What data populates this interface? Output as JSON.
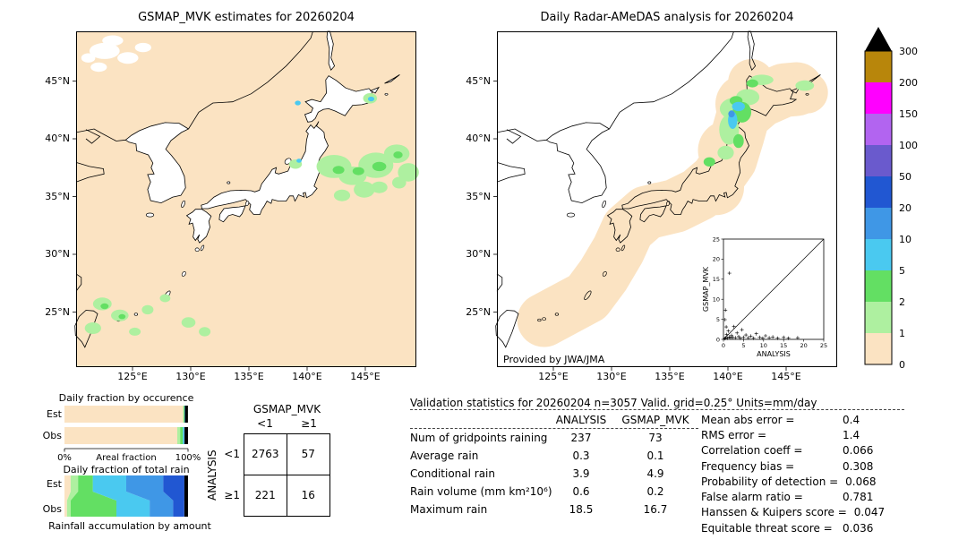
{
  "figure": {
    "left_map": {
      "title": "GSMAP_MVK estimates for 20260204"
    },
    "right_map": {
      "title": "Daily Radar-AMeDAS analysis for 20260204",
      "credit": "Provided by JWA/JMA"
    },
    "lat_ticks": [
      "45°N",
      "40°N",
      "35°N",
      "30°N",
      "25°N"
    ],
    "lon_ticks": [
      "125°E",
      "130°E",
      "135°E",
      "140°E",
      "145°E"
    ]
  },
  "colorbar": {
    "unit_labels": [
      "300",
      "200",
      "150",
      "100",
      "50",
      "20",
      "10",
      "5",
      "2",
      "1",
      "0"
    ],
    "colors_top_to_bottom": [
      "#b8860b",
      "#ff00ff",
      "#b264f0",
      "#6a5acd",
      "#2157d2",
      "#3f97e6",
      "#4ac9f0",
      "#63df63",
      "#aef0a0",
      "#fbe3c2"
    ],
    "overflow_arrow_color": "#000000"
  },
  "fractions": {
    "occurrence": {
      "title": "Daily fraction by occurence",
      "row_labels": [
        "Est",
        "Obs"
      ],
      "axis": {
        "left": "0%",
        "center": "Areal fraction",
        "right": "100%"
      }
    },
    "total_rain": {
      "title": "Daily fraction of total rain",
      "row_labels": [
        "Est",
        "Obs"
      ],
      "footer": "Rainfall accumulation by amount"
    }
  },
  "contingency": {
    "col_group": "GSMAP_MVK",
    "row_group": "ANALYSIS",
    "col_labels": [
      "<1",
      "≥1"
    ],
    "row_labels": [
      "<1",
      "≥1"
    ],
    "values": [
      [
        "2763",
        "57"
      ],
      [
        "221",
        "16"
      ]
    ]
  },
  "stats": {
    "title": "Validation statistics for 20260204  n=3057 Valid. grid=0.25° Units=mm/day",
    "col_headers": [
      "ANALYSIS",
      "GSMAP_MVK"
    ],
    "rows": [
      {
        "label": "Num of gridpoints raining",
        "analysis": "237",
        "gsmap": "73"
      },
      {
        "label": "Average rain",
        "analysis": "0.3",
        "gsmap": "0.1"
      },
      {
        "label": "Conditional rain",
        "analysis": "3.9",
        "gsmap": "4.9"
      },
      {
        "label": "Rain volume (mm km²10⁶)",
        "analysis": "0.6",
        "gsmap": "0.2"
      },
      {
        "label": "Maximum rain",
        "analysis": "18.5",
        "gsmap": "16.7"
      }
    ],
    "side": [
      {
        "label": "Mean abs error =",
        "value": "0.4"
      },
      {
        "label": "RMS error =",
        "value": "1.4"
      },
      {
        "label": "Correlation coeff =",
        "value": "0.066"
      },
      {
        "label": "Frequency bias =",
        "value": "0.308"
      },
      {
        "label": "Probability of detection =",
        "value": "0.068"
      },
      {
        "label": "False alarm ratio =",
        "value": "0.781"
      },
      {
        "label": "Hanssen & Kuipers score =",
        "value": "0.047"
      },
      {
        "label": "Equitable threat score =",
        "value": "0.036"
      }
    ]
  },
  "chart_data": [
    {
      "type": "heatmap",
      "id": "gsmap_map",
      "title": "GSMAP_MVK estimates for 20260204",
      "units": "mm/day",
      "x_ticks": [
        "125°E",
        "130°E",
        "135°E",
        "140°E",
        "145°E"
      ],
      "y_ticks": [
        "45°N",
        "40°N",
        "35°N",
        "30°N",
        "25°N"
      ],
      "scale_levels_mm_per_day": [
        0,
        1,
        2,
        5,
        10,
        20,
        50,
        100,
        150,
        200,
        300
      ],
      "rain_cells_format": "[lon_deg_E, lat_deg_N, rx_deg, ry_deg, level(1=1-2, 2=2-5, 3=5-10, 4=10-20 mm/day)]",
      "rain_cells": [
        [
          142.3,
          37.6,
          1.5,
          1.0,
          1
        ],
        [
          143.9,
          36.8,
          1.2,
          0.8,
          1
        ],
        [
          145.9,
          37.7,
          1.5,
          1.1,
          1
        ],
        [
          147.7,
          38.7,
          1.1,
          0.8,
          1
        ],
        [
          148.7,
          37.1,
          0.9,
          0.8,
          1
        ],
        [
          144.9,
          35.6,
          0.9,
          0.7,
          1
        ],
        [
          143.0,
          35.1,
          0.7,
          0.5,
          1
        ],
        [
          146.2,
          35.8,
          0.7,
          0.5,
          1
        ],
        [
          147.9,
          36.2,
          0.6,
          0.5,
          1
        ],
        [
          144.4,
          37.2,
          0.5,
          0.35,
          2
        ],
        [
          146.2,
          37.6,
          0.6,
          0.4,
          2
        ],
        [
          142.7,
          37.3,
          0.5,
          0.35,
          2
        ],
        [
          147.8,
          38.6,
          0.4,
          0.3,
          2
        ],
        [
          139.0,
          37.8,
          0.55,
          0.4,
          1
        ],
        [
          139.3,
          38.1,
          0.22,
          0.18,
          3
        ],
        [
          145.4,
          43.5,
          0.6,
          0.45,
          1
        ],
        [
          145.5,
          43.45,
          0.28,
          0.2,
          3
        ],
        [
          139.2,
          43.1,
          0.25,
          0.2,
          3
        ],
        [
          122.4,
          25.7,
          0.8,
          0.55,
          1
        ],
        [
          121.6,
          23.6,
          0.7,
          0.5,
          1
        ],
        [
          123.9,
          24.7,
          0.75,
          0.5,
          1
        ],
        [
          126.3,
          25.2,
          0.5,
          0.4,
          1
        ],
        [
          127.8,
          26.2,
          0.45,
          0.35,
          1
        ],
        [
          129.8,
          24.1,
          0.6,
          0.45,
          1
        ],
        [
          131.2,
          23.3,
          0.5,
          0.4,
          1
        ],
        [
          125.2,
          23.3,
          0.5,
          0.35,
          1
        ],
        [
          122.6,
          25.5,
          0.35,
          0.25,
          2
        ],
        [
          124.1,
          24.6,
          0.3,
          0.22,
          2
        ]
      ]
    },
    {
      "type": "heatmap",
      "id": "radar_map",
      "title": "Daily Radar-AMeDAS analysis for 20260204",
      "units": "mm/day",
      "credit": "Provided by JWA/JMA",
      "x_ticks": [
        "125°E",
        "130°E",
        "135°E",
        "140°E",
        "145°E"
      ],
      "y_ticks": [
        "45°N",
        "40°N",
        "35°N",
        "30°N",
        "25°N"
      ],
      "coverage_path": [
        [
          124.2,
          24.3
        ],
        [
          127.9,
          26.3
        ],
        [
          129.3,
          28.2
        ],
        [
          130.6,
          30.4
        ],
        [
          131.4,
          32.2
        ],
        [
          133.0,
          33.6
        ],
        [
          135.5,
          34.2
        ],
        [
          137.5,
          35.2
        ],
        [
          139.0,
          36.5
        ],
        [
          140.2,
          38.2
        ],
        [
          140.8,
          40.2
        ],
        [
          141.3,
          42.0
        ],
        [
          142.8,
          43.3
        ],
        [
          144.8,
          44.2
        ],
        [
          145.9,
          44.3
        ]
      ],
      "coverage_spots": [
        [
          124.2,
          24.3,
          1.7
        ],
        [
          127.9,
          26.4,
          1.9
        ],
        [
          146.8,
          44.0,
          1.8
        ],
        [
          142.0,
          44.9,
          2.0
        ],
        [
          140.0,
          39.0,
          2.6
        ],
        [
          141.5,
          43.0,
          2.6
        ],
        [
          139.0,
          35.8,
          2.4
        ],
        [
          134.0,
          34.0,
          2.2
        ]
      ],
      "rain_cells": [
        [
          140.6,
          42.6,
          1.3,
          0.95,
          1
        ],
        [
          141.7,
          43.6,
          1.0,
          0.7,
          1
        ],
        [
          140.1,
          40.8,
          0.85,
          1.3,
          1
        ],
        [
          139.8,
          38.8,
          0.7,
          0.6,
          1
        ],
        [
          138.4,
          38.0,
          0.5,
          0.4,
          2
        ],
        [
          140.9,
          39.8,
          0.45,
          0.6,
          2
        ],
        [
          140.7,
          43.3,
          0.55,
          0.4,
          2
        ],
        [
          142.9,
          45.1,
          1.0,
          0.45,
          1
        ],
        [
          142.1,
          44.8,
          0.5,
          0.35,
          2
        ],
        [
          146.6,
          44.6,
          0.8,
          0.45,
          1
        ],
        [
          141.2,
          42.3,
          0.8,
          0.9,
          2
        ],
        [
          140.4,
          41.6,
          0.4,
          0.75,
          3
        ],
        [
          140.9,
          42.8,
          0.55,
          0.4,
          3
        ],
        [
          140.3,
          42.15,
          0.28,
          0.3,
          4
        ]
      ]
    },
    {
      "type": "scatter",
      "id": "inset_scatter",
      "xlabel": "ANALYSIS",
      "ylabel": "GSMAP_MVK",
      "xlim": [
        0,
        25
      ],
      "ylim": [
        0,
        25
      ],
      "tick_labels": [
        "0",
        "5",
        "10",
        "15",
        "20",
        "25"
      ],
      "identity_line": true,
      "points": [
        [
          0.3,
          0.2
        ],
        [
          0.6,
          0.4
        ],
        [
          0.8,
          1.2
        ],
        [
          1.0,
          0.3
        ],
        [
          1.2,
          2.1
        ],
        [
          1.5,
          0.6
        ],
        [
          1.5,
          16.5
        ],
        [
          1.8,
          0.4
        ],
        [
          2.0,
          1.0
        ],
        [
          2.3,
          0.5
        ],
        [
          2.6,
          3.2
        ],
        [
          3.0,
          0.4
        ],
        [
          3.4,
          1.6
        ],
        [
          3.8,
          0.7
        ],
        [
          4.2,
          0.3
        ],
        [
          4.6,
          2.4
        ],
        [
          5.0,
          0.5
        ],
        [
          5.6,
          1.1
        ],
        [
          6.2,
          0.4
        ],
        [
          6.8,
          0.8
        ],
        [
          7.5,
          0.3
        ],
        [
          8.2,
          1.4
        ],
        [
          9.0,
          0.5
        ],
        [
          9.8,
          0.3
        ],
        [
          10.5,
          0.9
        ],
        [
          11.4,
          0.4
        ],
        [
          12.3,
          0.6
        ],
        [
          13.5,
          0.3
        ],
        [
          15.0,
          0.5
        ],
        [
          16.2,
          0.3
        ],
        [
          18.5,
          0.4
        ],
        [
          0.4,
          4.9
        ],
        [
          0.7,
          3.1
        ],
        [
          0.5,
          7.3
        ]
      ]
    },
    {
      "type": "bar",
      "id": "occurrence_fraction",
      "title": "Daily fraction by occurence",
      "orientation": "horizontal",
      "unit": "%",
      "xlabel": "Areal fraction",
      "categories": [
        "Est",
        "Obs"
      ],
      "series": [
        {
          "name": "Est",
          "segments": [
            {
              "pct": 96.0,
              "color": "#fbe3c2"
            },
            {
              "pct": 0.6,
              "color": "#aef0a0"
            },
            {
              "pct": 0.5,
              "color": "#63df63"
            },
            {
              "pct": 0.4,
              "color": "#4ac9f0"
            },
            {
              "pct": 2.5,
              "color": "#000000"
            }
          ]
        },
        {
          "name": "Obs",
          "segments": [
            {
              "pct": 91.3,
              "color": "#fbe3c2"
            },
            {
              "pct": 2.3,
              "color": "#aef0a0"
            },
            {
              "pct": 2.3,
              "color": "#63df63"
            },
            {
              "pct": 0.9,
              "color": "#4ac9f0"
            },
            {
              "pct": 0.4,
              "color": "#3f97e6"
            },
            {
              "pct": 2.8,
              "color": "#000000"
            }
          ]
        }
      ]
    },
    {
      "type": "bar",
      "id": "total_rain_fraction",
      "title": "Daily fraction of total rain",
      "orientation": "horizontal",
      "unit": "%",
      "xlabel": "Rainfall accumulation by amount",
      "categories": [
        "Est",
        "Obs"
      ],
      "series": [
        {
          "name": "Est",
          "segments": [
            {
              "pct": 5,
              "color": "#fbe3c2"
            },
            {
              "pct": 6,
              "color": "#aef0a0"
            },
            {
              "pct": 12,
              "color": "#63df63"
            },
            {
              "pct": 27,
              "color": "#4ac9f0"
            },
            {
              "pct": 30,
              "color": "#3f97e6"
            },
            {
              "pct": 17,
              "color": "#2157d2"
            },
            {
              "pct": 3,
              "color": "#000000"
            }
          ]
        },
        {
          "name": "Obs",
          "segments": [
            {
              "pct": 2,
              "color": "#fbe3c2"
            },
            {
              "pct": 3,
              "color": "#aef0a0"
            },
            {
              "pct": 37,
              "color": "#63df63"
            },
            {
              "pct": 27,
              "color": "#4ac9f0"
            },
            {
              "pct": 19,
              "color": "#3f97e6"
            },
            {
              "pct": 9,
              "color": "#2157d2"
            },
            {
              "pct": 3,
              "color": "#000000"
            }
          ]
        }
      ]
    },
    {
      "type": "table",
      "id": "contingency_table",
      "col_group": "GSMAP_MVK",
      "row_group": "ANALYSIS",
      "col_labels": [
        "<1",
        "≥1"
      ],
      "row_labels": [
        "<1",
        "≥1"
      ],
      "values": [
        [
          2763,
          57
        ],
        [
          221,
          16
        ]
      ]
    },
    {
      "type": "table",
      "id": "validation_stats",
      "title": "Validation statistics for 20260204  n=3057 Valid. grid=0.25° Units=mm/day",
      "columns": [
        "",
        "ANALYSIS",
        "GSMAP_MVK"
      ],
      "rows": [
        [
          "Num of gridpoints raining",
          237,
          73
        ],
        [
          "Average rain",
          0.3,
          0.1
        ],
        [
          "Conditional rain",
          3.9,
          4.9
        ],
        [
          "Rain volume (mm km²10⁶)",
          0.6,
          0.2
        ],
        [
          "Maximum rain",
          18.5,
          16.7
        ]
      ],
      "scores": {
        "Mean abs error": 0.4,
        "RMS error": 1.4,
        "Correlation coeff": 0.066,
        "Frequency bias": 0.308,
        "Probability of detection": 0.068,
        "False alarm ratio": 0.781,
        "Hanssen & Kuipers score": 0.047,
        "Equitable threat score": 0.036
      }
    }
  ]
}
